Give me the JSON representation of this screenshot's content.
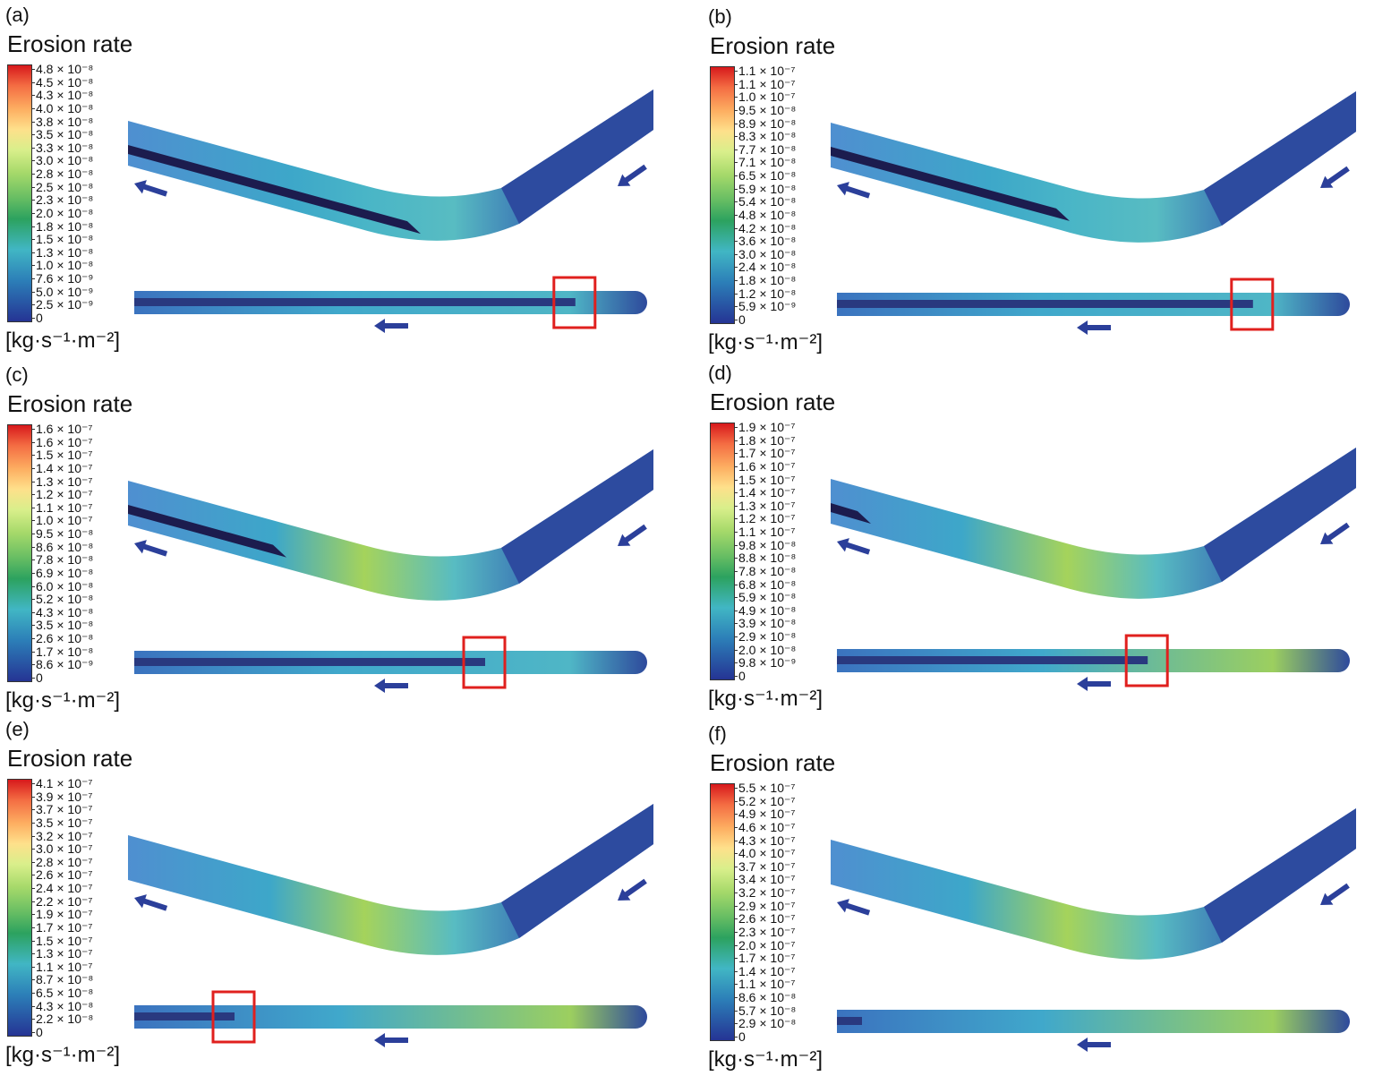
{
  "panels": [
    {
      "letter": "(a)",
      "title": "Erosion rate",
      "unit": "[kg·s⁻¹·m⁻²]",
      "ticks": [
        "4.8 × 10⁻⁸",
        "4.5 × 10⁻⁸",
        "4.3 × 10⁻⁸",
        "4.0 × 10⁻⁸",
        "3.8 × 10⁻⁸",
        "3.5 × 10⁻⁸",
        "3.3 × 10⁻⁸",
        "3.0 × 10⁻⁸",
        "2.8 × 10⁻⁸",
        "2.5 × 10⁻⁸",
        "2.3 × 10⁻⁸",
        "2.0 × 10⁻⁸",
        "1.8 × 10⁻⁸",
        "1.5 × 10⁻⁸",
        "1.3 × 10⁻⁸",
        "1.0 × 10⁻⁸",
        "7.6 × 10⁻⁹",
        "5.0 × 10⁻⁹",
        "2.5 × 10⁻⁹",
        "0"
      ],
      "dark_fraction": 0.55,
      "has_box": true,
      "box_fraction": 0.88,
      "hot": 0.2
    },
    {
      "letter": "(b)",
      "title": "Erosion rate",
      "unit": "[kg·s⁻¹·m⁻²]",
      "ticks": [
        "1.1 × 10⁻⁷",
        "1.1 × 10⁻⁷",
        "1.0 × 10⁻⁷",
        "9.5 × 10⁻⁸",
        "8.9 × 10⁻⁸",
        "8.3 × 10⁻⁸",
        "7.7 × 10⁻⁸",
        "7.1 × 10⁻⁸",
        "6.5 × 10⁻⁸",
        "5.9 × 10⁻⁸",
        "5.4 × 10⁻⁸",
        "4.8 × 10⁻⁸",
        "4.2 × 10⁻⁸",
        "3.6 × 10⁻⁸",
        "3.0 × 10⁻⁸",
        "2.4 × 10⁻⁸",
        "1.8 × 10⁻⁸",
        "1.2 × 10⁻⁸",
        "5.9 × 10⁻⁹",
        "0"
      ],
      "dark_fraction": 0.45,
      "has_box": true,
      "box_fraction": 0.83,
      "hot": 0.25
    },
    {
      "letter": "(c)",
      "title": "Erosion rate",
      "unit": "[kg·s⁻¹·m⁻²]",
      "ticks": [
        "1.6 × 10⁻⁷",
        "1.6 × 10⁻⁷",
        "1.5 × 10⁻⁷",
        "1.4 × 10⁻⁷",
        "1.3 × 10⁻⁷",
        "1.2 × 10⁻⁷",
        "1.1 × 10⁻⁷",
        "1.0 × 10⁻⁷",
        "9.5 × 10⁻⁸",
        "8.6 × 10⁻⁸",
        "7.8 × 10⁻⁸",
        "6.9 × 10⁻⁸",
        "6.0 × 10⁻⁸",
        "5.2 × 10⁻⁸",
        "4.3 × 10⁻⁸",
        "3.5 × 10⁻⁸",
        "2.6 × 10⁻⁸",
        "1.7 × 10⁻⁸",
        "8.6 × 10⁻⁹",
        "0"
      ],
      "dark_fraction": 0.3,
      "has_box": true,
      "box_fraction": 0.7,
      "hot": 0.35
    },
    {
      "letter": "(d)",
      "title": "Erosion rate",
      "unit": "[kg·s⁻¹·m⁻²]",
      "ticks": [
        "1.9 × 10⁻⁷",
        "1.8 × 10⁻⁷",
        "1.7 × 10⁻⁷",
        "1.6 × 10⁻⁷",
        "1.5 × 10⁻⁷",
        "1.4 × 10⁻⁷",
        "1.3 × 10⁻⁷",
        "1.2 × 10⁻⁷",
        "1.1 × 10⁻⁷",
        "9.8 × 10⁻⁸",
        "8.8 × 10⁻⁸",
        "7.8 × 10⁻⁸",
        "6.8 × 10⁻⁸",
        "5.9 × 10⁻⁸",
        "4.9 × 10⁻⁸",
        "3.9 × 10⁻⁸",
        "2.9 × 10⁻⁸",
        "2.0 × 10⁻⁸",
        "9.8 × 10⁻⁹",
        "0"
      ],
      "dark_fraction": 0.08,
      "has_box": true,
      "box_fraction": 0.62,
      "hot": 0.5
    },
    {
      "letter": "(e)",
      "title": "Erosion rate",
      "unit": "[kg·s⁻¹·m⁻²]",
      "ticks": [
        "4.1 × 10⁻⁷",
        "3.9 × 10⁻⁷",
        "3.7 × 10⁻⁷",
        "3.5 × 10⁻⁷",
        "3.2 × 10⁻⁷",
        "3.0 × 10⁻⁷",
        "2.8 × 10⁻⁷",
        "2.6 × 10⁻⁷",
        "2.4 × 10⁻⁷",
        "2.2 × 10⁻⁷",
        "1.9 × 10⁻⁷",
        "1.7 × 10⁻⁷",
        "1.5 × 10⁻⁷",
        "1.3 × 10⁻⁷",
        "1.1 × 10⁻⁷",
        "8.7 × 10⁻⁸",
        "6.5 × 10⁻⁸",
        "4.3 × 10⁻⁸",
        "2.2 × 10⁻⁸",
        "0"
      ],
      "dark_fraction": 0.0,
      "has_box": true,
      "box_fraction": 0.2,
      "hot": 0.4
    },
    {
      "letter": "(f)",
      "title": "Erosion rate",
      "unit": "[kg·s⁻¹·m⁻²]",
      "ticks": [
        "5.5 × 10⁻⁷",
        "5.2 × 10⁻⁷",
        "4.9 × 10⁻⁷",
        "4.6 × 10⁻⁷",
        "4.3 × 10⁻⁷",
        "4.0 × 10⁻⁷",
        "3.7 × 10⁻⁷",
        "3.4 × 10⁻⁷",
        "3.2 × 10⁻⁷",
        "2.9 × 10⁻⁷",
        "2.6 × 10⁻⁷",
        "2.3 × 10⁻⁷",
        "2.0 × 10⁻⁷",
        "1.7 × 10⁻⁷",
        "1.4 × 10⁻⁷",
        "1.1 × 10⁻⁷",
        "8.6 × 10⁻⁸",
        "5.7 × 10⁻⁸",
        "2.9 × 10⁻⁸",
        "0"
      ],
      "dark_fraction": 0.0,
      "has_box": false,
      "box_fraction": 0,
      "hot": 0.45
    }
  ]
}
